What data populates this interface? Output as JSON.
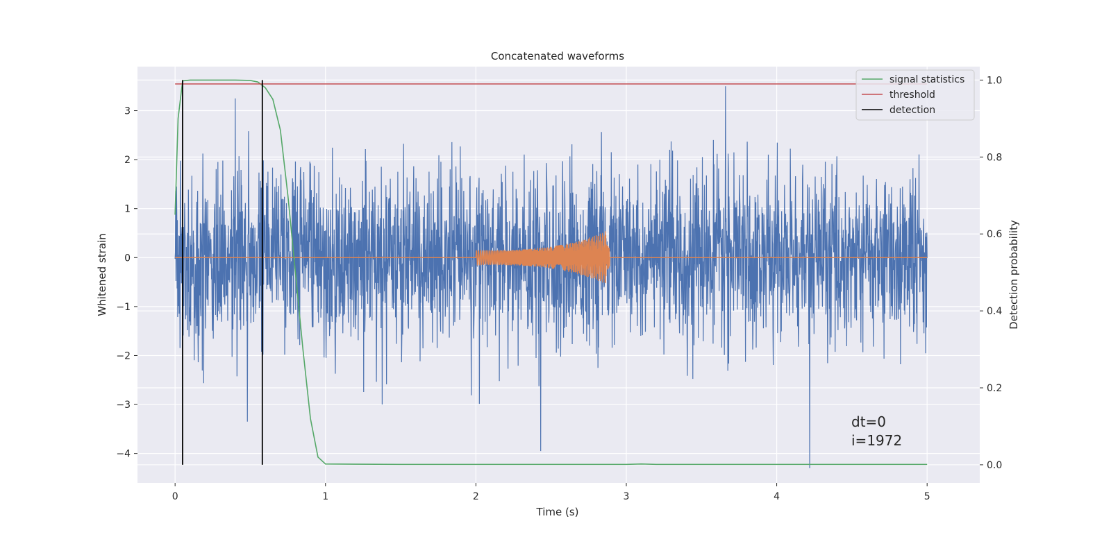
{
  "chart_data": {
    "type": "line",
    "title": "Concatenated waveforms",
    "xlabel": "Time (s)",
    "ylabel": "Whitened strain",
    "ylabel_right": "Detection probability",
    "xlim": [
      -0.25,
      5.35
    ],
    "ylim": [
      -4.6,
      3.9
    ],
    "ylim_right": [
      -0.047,
      1.035
    ],
    "x_ticks": [
      0,
      1,
      2,
      3,
      4,
      5
    ],
    "x_tick_labels": [
      "0",
      "1",
      "2",
      "3",
      "4",
      "5"
    ],
    "y_ticks": [
      -4,
      -3,
      -2,
      -1,
      0,
      1,
      2,
      3
    ],
    "y_tick_labels": [
      "−4",
      "−3",
      "−2",
      "−1",
      "0",
      "1",
      "2",
      "3"
    ],
    "y_right_ticks": [
      0.0,
      0.2,
      0.4,
      0.6,
      0.8,
      1.0
    ],
    "y_right_tick_labels": [
      "0.0",
      "0.2",
      "0.4",
      "0.6",
      "0.8",
      "1.0"
    ],
    "grid": true,
    "legend_position": "top-right",
    "series": [
      {
        "name": "",
        "role": "whitened_strain_noise",
        "axis": "left",
        "color": "#4c72b0",
        "x_range": [
          0,
          5
        ],
        "amplitude_envelope": [
          -3.0,
          2.8
        ],
        "notable_spikes": [
          {
            "x": 0.4,
            "y": 3.25
          },
          {
            "x": 0.48,
            "y": -3.35
          },
          {
            "x": 2.43,
            "y": -3.95
          },
          {
            "x": 3.66,
            "y": 3.5
          },
          {
            "x": 4.22,
            "y": -4.3
          }
        ]
      },
      {
        "name": "",
        "role": "injected_chirp",
        "axis": "left",
        "color": "#dd8452",
        "x_range": [
          0,
          5
        ],
        "chirp_start": 2.0,
        "chirp_end": 2.87,
        "chirp_peak_amplitude": 0.55
      },
      {
        "name": "signal statistics",
        "axis": "right",
        "color": "#55a868",
        "x": [
          0.0,
          0.02,
          0.05,
          0.1,
          0.2,
          0.3,
          0.4,
          0.5,
          0.55,
          0.6,
          0.65,
          0.7,
          0.75,
          0.8,
          0.85,
          0.9,
          0.95,
          1.0,
          1.5,
          2.0,
          2.5,
          3.0,
          3.1,
          3.2,
          3.5,
          4.0,
          4.5,
          5.0
        ],
        "values": [
          0.65,
          0.9,
          0.998,
          1.0,
          1.0,
          1.0,
          1.0,
          0.999,
          0.995,
          0.98,
          0.95,
          0.87,
          0.7,
          0.5,
          0.3,
          0.12,
          0.02,
          0.002,
          0.001,
          0.001,
          0.001,
          0.001,
          0.002,
          0.001,
          0.001,
          0.001,
          0.001,
          0.001
        ]
      },
      {
        "name": "threshold",
        "axis": "right",
        "color": "#c44e52",
        "x": [
          0,
          5
        ],
        "values": [
          0.99,
          0.99
        ]
      },
      {
        "name": "detection",
        "axis": "right",
        "color": "#000000",
        "vlines": [
          0.05,
          0.58
        ],
        "ymin": 0.0,
        "ymax": 1.0
      }
    ],
    "annotations": [
      {
        "text": "dt=0",
        "x": 4.5,
        "y": -3.45
      },
      {
        "text": "i=1972",
        "x": 4.5,
        "y": -3.85
      }
    ]
  }
}
